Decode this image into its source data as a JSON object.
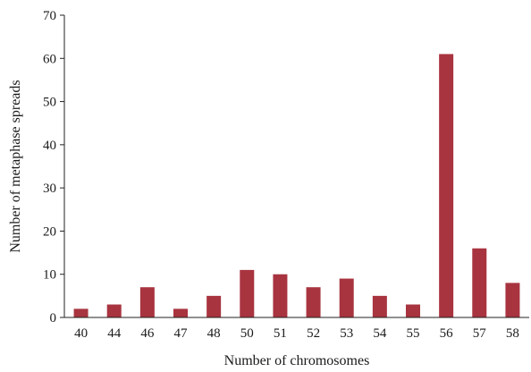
{
  "chart_data": {
    "type": "bar",
    "title": "",
    "xlabel": "Number of chromosomes",
    "ylabel": "Number of metaphase spreads",
    "categories": [
      "40",
      "44",
      "46",
      "47",
      "48",
      "50",
      "51",
      "52",
      "53",
      "54",
      "55",
      "56",
      "57",
      "58"
    ],
    "values": [
      2,
      3,
      7,
      2,
      5,
      11,
      10,
      7,
      9,
      5,
      3,
      61,
      16,
      8
    ],
    "ylim": [
      0,
      70
    ],
    "yticks": [
      0,
      10,
      20,
      30,
      40,
      50,
      60,
      70
    ],
    "grid": false,
    "legend": "none",
    "bar_color": "#A8343F"
  }
}
